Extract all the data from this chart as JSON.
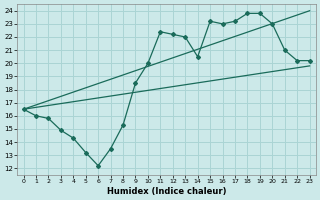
{
  "xlabel": "Humidex (Indice chaleur)",
  "bg_color": "#cce9e9",
  "grid_color": "#aad4d4",
  "line_color": "#1a6b5a",
  "xlim": [
    -0.5,
    23.5
  ],
  "ylim": [
    11.5,
    24.5
  ],
  "yticks": [
    12,
    13,
    14,
    15,
    16,
    17,
    18,
    19,
    20,
    21,
    22,
    23,
    24
  ],
  "xticks": [
    0,
    1,
    2,
    3,
    4,
    5,
    6,
    7,
    8,
    9,
    10,
    11,
    12,
    13,
    14,
    15,
    16,
    17,
    18,
    19,
    20,
    21,
    22,
    23
  ],
  "main_x": [
    0,
    1,
    2,
    3,
    4,
    5,
    6,
    7,
    8,
    9,
    10,
    11,
    12,
    13,
    14,
    15,
    16,
    17,
    18,
    19,
    20,
    21,
    22,
    23
  ],
  "main_y": [
    16.5,
    16.0,
    15.8,
    14.9,
    14.3,
    13.2,
    12.2,
    13.5,
    15.3,
    18.5,
    20.0,
    22.4,
    22.2,
    22.0,
    20.5,
    23.2,
    23.0,
    23.2,
    23.8,
    23.8,
    23.0,
    21.0,
    20.2,
    20.2
  ],
  "upper_line_x": [
    0,
    23
  ],
  "upper_line_y": [
    16.5,
    24.0
  ],
  "lower_line_x": [
    0,
    23
  ],
  "lower_line_y": [
    16.5,
    19.8
  ]
}
